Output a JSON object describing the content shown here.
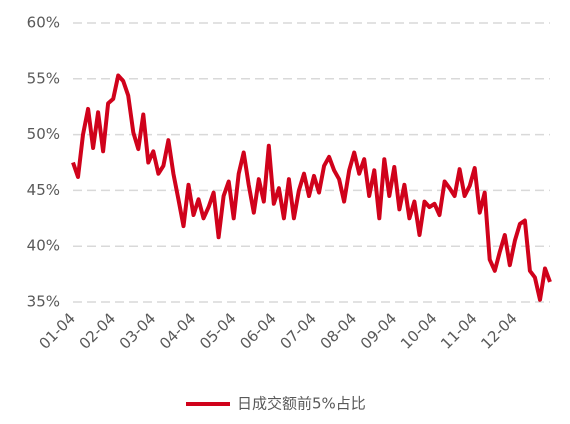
{
  "chart_data": {
    "type": "line",
    "x": [
      "01-04",
      null,
      null,
      null,
      null,
      null,
      null,
      null,
      "02-04",
      null,
      null,
      null,
      null,
      null,
      null,
      null,
      "03-04",
      null,
      null,
      null,
      null,
      null,
      null,
      null,
      "04-04",
      null,
      null,
      null,
      null,
      null,
      null,
      null,
      "05-04",
      null,
      null,
      null,
      null,
      null,
      null,
      null,
      "06-04",
      null,
      null,
      null,
      null,
      null,
      null,
      null,
      "07-04",
      null,
      null,
      null,
      null,
      null,
      null,
      null,
      "08-04",
      null,
      null,
      null,
      null,
      null,
      null,
      null,
      "09-04",
      null,
      null,
      null,
      null,
      null,
      null,
      null,
      "10-04",
      null,
      null,
      null,
      null,
      null,
      null,
      null,
      "11-04",
      null,
      null,
      null,
      null,
      null,
      null,
      null,
      "12-04",
      null,
      null,
      null,
      null,
      null,
      null,
      null
    ],
    "series": [
      {
        "name": "日成交额前5%占比",
        "color": "#d0021b",
        "values": [
          47.5,
          46.2,
          50,
          52.3,
          48.8,
          52,
          48.5,
          52.8,
          53.2,
          55.3,
          54.8,
          53.5,
          50.2,
          48.7,
          51.8,
          47.5,
          48.5,
          46.5,
          47.2,
          49.5,
          46.5,
          44.2,
          41.8,
          45.5,
          42.8,
          44.2,
          42.5,
          43.5,
          44.8,
          40.8,
          44.5,
          45.8,
          42.5,
          46.5,
          48.4,
          45.5,
          43,
          46,
          44,
          49,
          43.8,
          45.2,
          42.5,
          46,
          42.5,
          45,
          46.5,
          44.5,
          46.3,
          44.8,
          47.2,
          48,
          46.8,
          46,
          44,
          46.8,
          48.4,
          46.5,
          47.8,
          44.5,
          46.8,
          42.5,
          47.8,
          44.5,
          47.1,
          43.3,
          45.5,
          42.5,
          44,
          41,
          44,
          43.5,
          43.8,
          42.8,
          45.8,
          45.2,
          44.5,
          46.9,
          44.5,
          45.4,
          47,
          43,
          44.8,
          38.8,
          37.8,
          39.5,
          41,
          38.3,
          40.5,
          42,
          42.3,
          37.8,
          37.2,
          35.2,
          38,
          36.8
        ]
      }
    ],
    "ylim": [
      35,
      60
    ],
    "yticks": [
      {
        "value": 35,
        "label": "35%"
      },
      {
        "value": 40,
        "label": "40%"
      },
      {
        "value": 45,
        "label": "45%"
      },
      {
        "value": 50,
        "label": "50%"
      },
      {
        "value": 55,
        "label": "55%"
      },
      {
        "value": 60,
        "label": "60%"
      }
    ],
    "grid": true,
    "legend": "bottom"
  }
}
